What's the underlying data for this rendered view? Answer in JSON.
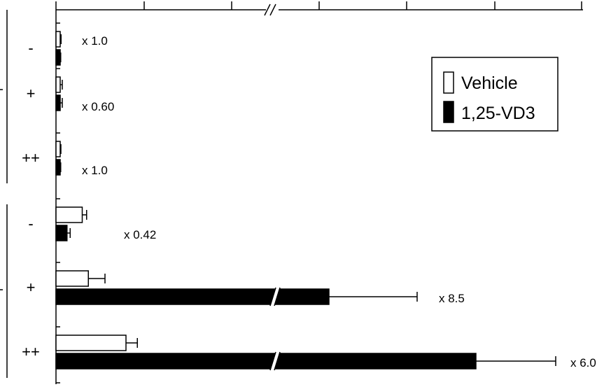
{
  "chart_data": {
    "type": "bar",
    "orientation": "horizontal",
    "title": "",
    "xlabel": "",
    "ylabel": "",
    "x_axis_break": true,
    "grid": false,
    "legend_position": "top-right",
    "categories": [
      "-",
      "+",
      "++",
      "-",
      "+",
      "++"
    ],
    "groups": [
      {
        "rows": [
          0,
          1,
          2
        ]
      },
      {
        "rows": [
          3,
          4,
          5
        ]
      }
    ],
    "series": [
      {
        "name": "Vehicle",
        "color": "#ffffff",
        "values": [
          0.5,
          2.3,
          1.8,
          15.0,
          18.5,
          40.0
        ],
        "errors": [
          0.5,
          1.2,
          0.4,
          2.5,
          9.5,
          6.5
        ]
      },
      {
        "name": "1,25-VD3",
        "color": "#000000",
        "values": [
          0.5,
          1.4,
          1.8,
          6.3,
          157,
          240
        ],
        "errors": [
          0.3,
          1.2,
          0.3,
          1.8,
          51,
          45
        ]
      }
    ],
    "fold_labels": [
      "x 1.0",
      "x 0.60",
      "x 1.0",
      "x 0.42",
      "x 8.5",
      "x 6.0"
    ],
    "xlim": [
      0,
      300
    ]
  }
}
